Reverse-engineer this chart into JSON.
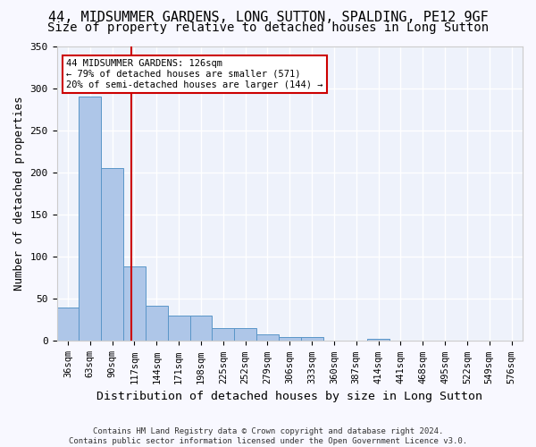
{
  "title_line1": "44, MIDSUMMER GARDENS, LONG SUTTON, SPALDING, PE12 9GF",
  "title_line2": "Size of property relative to detached houses in Long Sutton",
  "xlabel": "Distribution of detached houses by size in Long Sutton",
  "ylabel": "Number of detached properties",
  "bin_labels": [
    "36sqm",
    "63sqm",
    "90sqm",
    "117sqm",
    "144sqm",
    "171sqm",
    "198sqm",
    "225sqm",
    "252sqm",
    "279sqm",
    "306sqm",
    "333sqm",
    "360sqm",
    "387sqm",
    "414sqm",
    "441sqm",
    "468sqm",
    "495sqm",
    "522sqm",
    "549sqm",
    "576sqm"
  ],
  "bar_values": [
    40,
    290,
    205,
    88,
    42,
    30,
    30,
    15,
    15,
    8,
    5,
    5,
    0,
    0,
    3,
    0,
    0,
    0,
    0,
    0,
    0
  ],
  "bar_color": "#aec6e8",
  "bar_edge_color": "#5a96c8",
  "annotation_line1": "44 MIDSUMMER GARDENS: 126sqm",
  "annotation_line2": "← 79% of detached houses are smaller (571)",
  "annotation_line3": "20% of semi-detached houses are larger (144) →",
  "vline_bin_index": 2.85,
  "vline_color": "#cc0000",
  "annotation_box_color": "#ffffff",
  "annotation_box_edge": "#cc0000",
  "ylim": [
    0,
    350
  ],
  "yticks": [
    0,
    50,
    100,
    150,
    200,
    250,
    300,
    350
  ],
  "footer": "Contains HM Land Registry data © Crown copyright and database right 2024.\nContains public sector information licensed under the Open Government Licence v3.0.",
  "background_color": "#eef2fb",
  "grid_color": "#ffffff",
  "title_fontsize": 11,
  "subtitle_fontsize": 10,
  "tick_fontsize": 7.5,
  "ylabel_fontsize": 9,
  "xlabel_fontsize": 9.5
}
